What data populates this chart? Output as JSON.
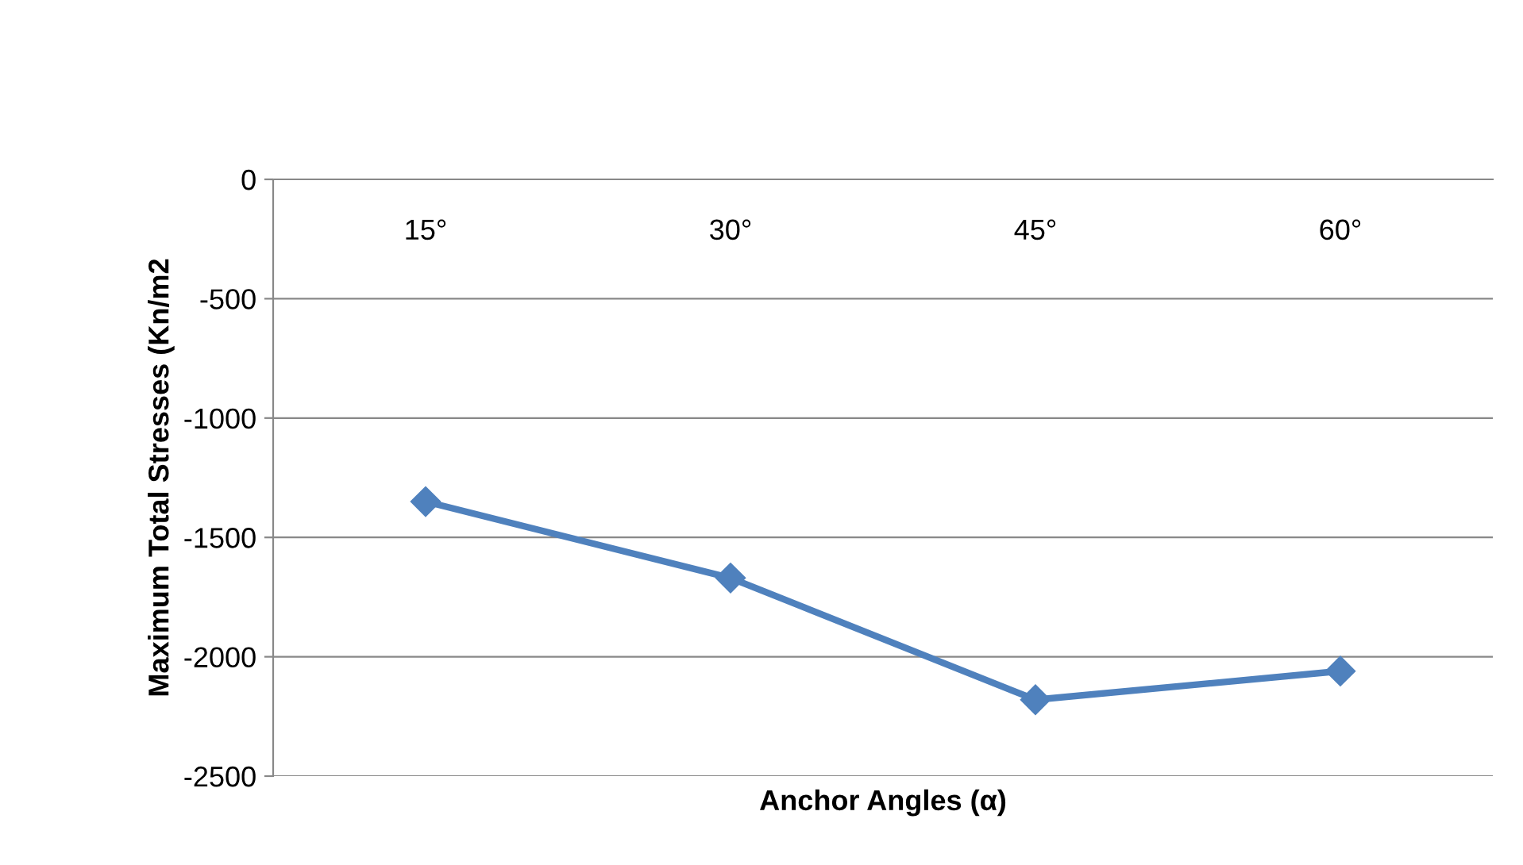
{
  "chart_data": {
    "type": "line",
    "xlabel": "Anchor Angles (α)",
    "ylabel": "Maximum Total Stresses (Kn/m2",
    "categories": [
      "15°",
      "30°",
      "45°",
      "60°"
    ],
    "series": [
      {
        "color": "#4f81bd",
        "values": [
          -1350,
          -1670,
          -2180,
          -2060
        ]
      }
    ],
    "ylim": [
      -2500,
      0
    ],
    "yticks": [
      -2500,
      -2000,
      -1500,
      -1000,
      -500,
      0
    ],
    "grid": "y",
    "marker": "diamond",
    "line_style": "solid",
    "legend": false
  }
}
